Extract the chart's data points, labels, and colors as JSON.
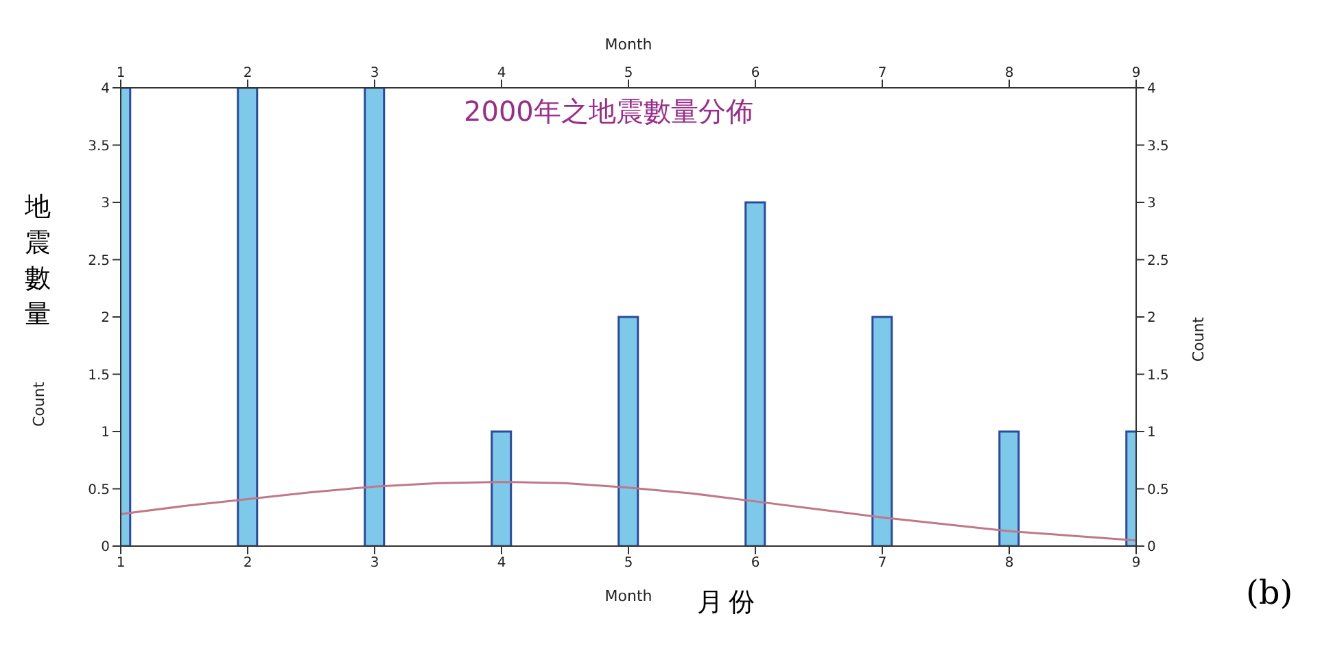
{
  "chart_data": {
    "type": "bar",
    "title": "2000年之地震數量分佈",
    "xlabel": "Month",
    "ylabel": "Count",
    "x2label": "Month",
    "y2label": "Count",
    "annotations": [
      "地震數量",
      "月份",
      "(b)"
    ],
    "x": [
      1,
      2,
      3,
      4,
      5,
      6,
      7,
      8,
      9
    ],
    "series": [
      {
        "color": "#7ec8ea",
        "values": [
          4,
          4,
          4,
          1,
          2,
          3,
          2,
          1,
          1
        ]
      },
      {
        "type": "line",
        "color": "#c07888",
        "x": [
          1,
          1.5,
          2,
          2.5,
          3,
          3.5,
          4,
          4.5,
          5,
          5.5,
          6,
          6.5,
          7,
          7.5,
          8,
          8.5,
          9
        ],
        "values": [
          0.28,
          0.35,
          0.41,
          0.47,
          0.52,
          0.55,
          0.56,
          0.55,
          0.51,
          0.46,
          0.39,
          0.32,
          0.25,
          0.19,
          0.13,
          0.09,
          0.05
        ]
      }
    ],
    "xlim": [
      1,
      9
    ],
    "xticks": [
      1,
      2,
      3,
      4,
      5,
      6,
      7,
      8,
      9
    ],
    "x2lim": [
      1,
      9
    ],
    "x2ticks": [
      1,
      2,
      3,
      4,
      5,
      6,
      7,
      8,
      9
    ],
    "ylim": [
      0,
      4
    ],
    "yticks": [
      0,
      0.5,
      1,
      1.5,
      2,
      2.5,
      3,
      3.5,
      4
    ],
    "y2lim": [
      0,
      4
    ],
    "y2ticks": [
      0,
      0.5,
      1,
      1.5,
      2,
      2.5,
      3,
      3.5,
      4
    ],
    "grid": false,
    "legend": false,
    "marker": "none",
    "line_style": "solid"
  }
}
